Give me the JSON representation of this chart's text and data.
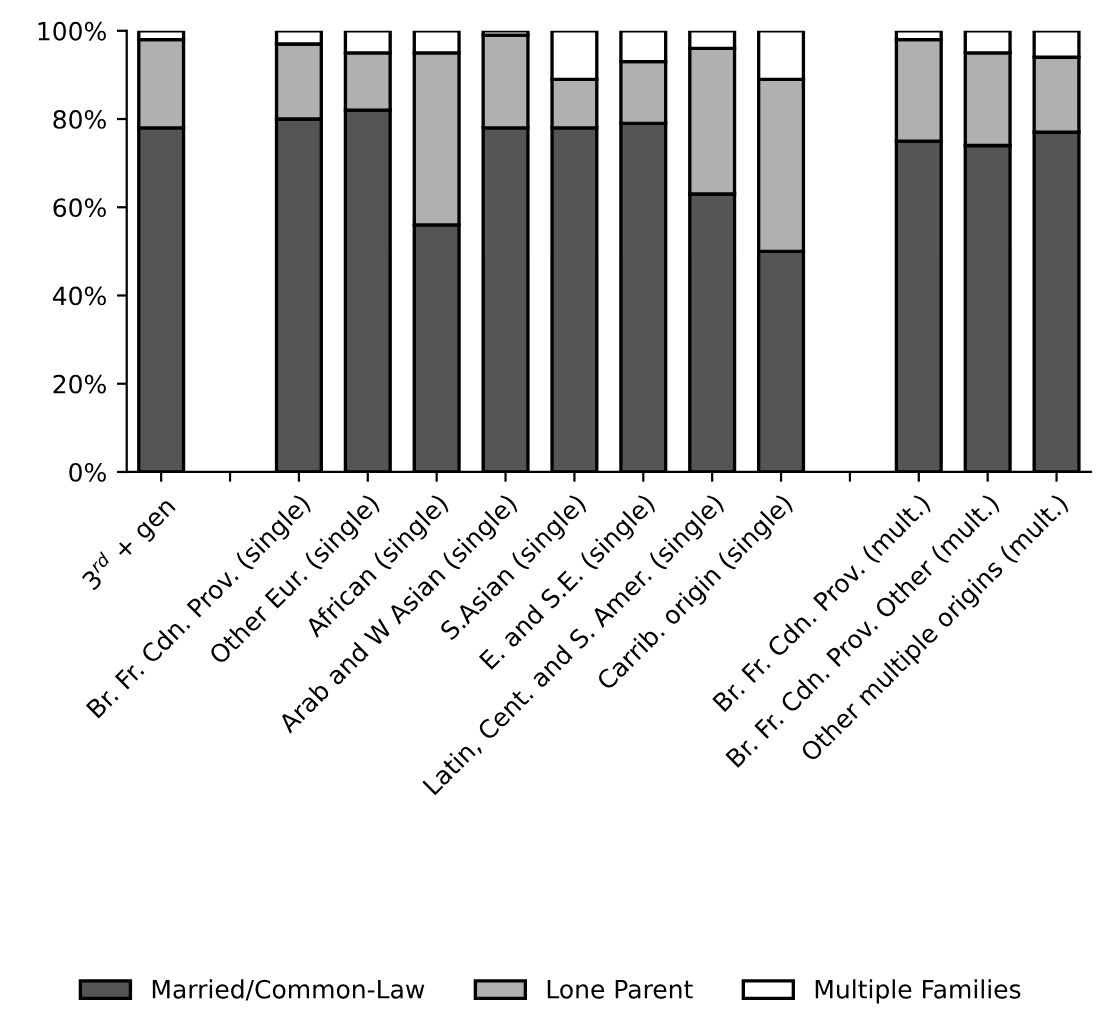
{
  "chart_data": {
    "type": "bar",
    "stacked": true,
    "categories": [
      "3$^{rd}$ + gen",
      null,
      "Br. Fr. Cdn. Prov. (single)",
      "Other Eur. (single)",
      "African (single)",
      "Arab and W Asian (single)",
      "S.Asian (single)",
      "E. and S.E. (single)",
      "Latin, Cent. and S. Amer. (single)",
      "Carrib. origin (single)",
      null,
      "Br. Fr. Cdn. Prov. (mult.)",
      "Br. Fr. Cdn. Prov. Other (mult.)",
      "Other multiple origins (mult.)"
    ],
    "series": [
      {
        "name": "Married/Common-Law",
        "color": "#555555",
        "values": [
          78,
          null,
          80,
          82,
          56,
          78,
          78,
          79,
          63,
          50,
          null,
          75,
          74,
          77
        ]
      },
      {
        "name": "Lone Parent",
        "color": "#b0b0b0",
        "values": [
          20,
          null,
          17,
          13,
          39,
          21,
          11,
          14,
          33,
          39,
          null,
          23,
          21,
          17
        ]
      },
      {
        "name": "Multiple Families",
        "color": "#ffffff",
        "values": [
          2,
          null,
          3,
          5,
          5,
          1,
          11,
          7,
          4,
          11,
          null,
          2,
          5,
          6
        ]
      }
    ],
    "ylim": [
      0,
      100
    ],
    "yticks": [
      {
        "value": 0,
        "label": "0%"
      },
      {
        "value": 20,
        "label": "20%"
      },
      {
        "value": 40,
        "label": "40%"
      },
      {
        "value": 60,
        "label": "60%"
      },
      {
        "value": 80,
        "label": "80%"
      },
      {
        "value": 100,
        "label": "100%"
      }
    ],
    "grid": false,
    "legend": "bottom"
  }
}
